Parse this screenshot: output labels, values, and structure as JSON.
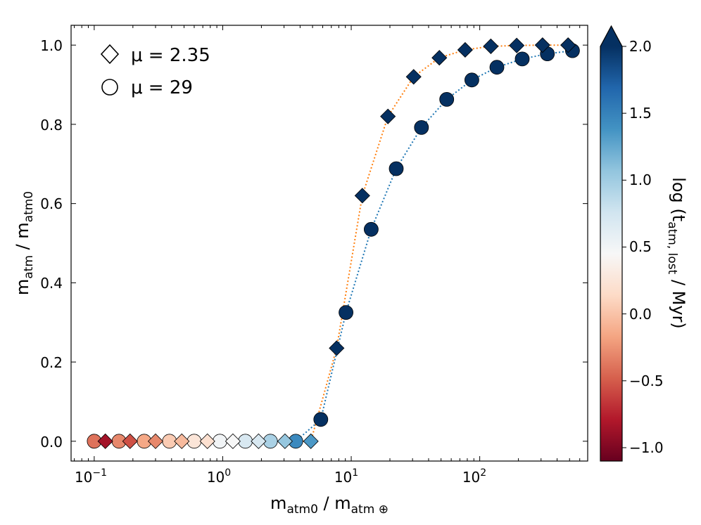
{
  "chart_data": {
    "type": "scatter",
    "xlabel": "m_atm0 / m_atm⊕",
    "xlabel_main": "m",
    "xlabel_sub": "atm0",
    "xlabel_sep": " / ",
    "xlabel_main2": "m",
    "xlabel_sub2": "atm ⊕",
    "ylabel": "m_atm / m_atm0",
    "ylabel_main": "m",
    "ylabel_sub": "atm",
    "ylabel_sep": " / ",
    "ylabel_main2": "m",
    "ylabel_sub2": "atm0",
    "xscale": "log",
    "xlim_log10": [
      -1.18,
      2.84
    ],
    "ylim": [
      -0.05,
      1.05
    ],
    "x_ticks": [
      {
        "base": "10",
        "exp": "−1",
        "value": 0.1
      },
      {
        "base": "10",
        "exp": "0",
        "value": 1
      },
      {
        "base": "10",
        "exp": "1",
        "value": 10
      },
      {
        "base": "10",
        "exp": "2",
        "value": 100
      }
    ],
    "y_ticks": [
      {
        "label": "0.0",
        "value": 0.0
      },
      {
        "label": "0.2",
        "value": 0.2
      },
      {
        "label": "0.4",
        "value": 0.4
      },
      {
        "label": "0.6",
        "value": 0.6
      },
      {
        "label": "0.8",
        "value": 0.8
      },
      {
        "label": "1.0",
        "value": 1.0
      }
    ],
    "legend": {
      "placement": "top-left",
      "entries": [
        {
          "marker": "diamond",
          "label": "μ = 2.35"
        },
        {
          "marker": "circle",
          "label": "μ = 29"
        }
      ]
    },
    "colorbar": {
      "label": "log (t_atm, lost / Myr)",
      "label_prefix": "log (t",
      "label_sub": "atm, lost",
      "label_suffix": " / Myr)",
      "range": [
        -1.1,
        2.0
      ],
      "extend": "max",
      "ticks": [
        {
          "label": "2.0",
          "value": 2.0
        },
        {
          "label": "1.5",
          "value": 1.5
        },
        {
          "label": "1.0",
          "value": 1.0
        },
        {
          "label": "0.5",
          "value": 0.5
        },
        {
          "label": "0.0",
          "value": 0.0
        },
        {
          "label": "−0.5",
          "value": -0.5
        },
        {
          "label": "−1.0",
          "value": -1.0
        }
      ],
      "colormap": "RdBu",
      "stops": [
        "#67001f",
        "#b2182b",
        "#d6604d",
        "#f4a582",
        "#fddbc7",
        "#f7f7f7",
        "#d1e5f0",
        "#92c5de",
        "#4393c3",
        "#2166ac",
        "#053061"
      ]
    },
    "series": [
      {
        "name": "μ = 2.35",
        "marker": "diamond",
        "line_color": "#ff7f0e",
        "x": [
          0.122,
          0.19,
          0.3,
          0.48,
          0.76,
          1.2,
          1.9,
          3.05,
          4.85,
          7.7,
          12.2,
          19.3,
          30.6,
          48.5,
          77,
          122,
          194,
          308,
          487
        ],
        "y": [
          0.0,
          0.0,
          0.0,
          0.0,
          0.0,
          0.0,
          0.0,
          0.0,
          0.0,
          0.235,
          0.62,
          0.82,
          0.92,
          0.968,
          0.988,
          0.997,
          0.999,
          1.0,
          1.0
        ],
        "log_t": [
          -0.85,
          -0.55,
          -0.3,
          -0.05,
          0.2,
          0.45,
          0.7,
          1.05,
          1.35,
          2.1,
          2.1,
          2.1,
          2.1,
          2.1,
          2.1,
          2.1,
          2.1,
          2.1,
          2.1
        ]
      },
      {
        "name": "μ = 29",
        "marker": "circle",
        "line_color": "#1f77b4",
        "x": [
          0.1,
          0.156,
          0.245,
          0.385,
          0.6,
          0.95,
          1.5,
          2.35,
          3.7,
          5.8,
          9.1,
          14.3,
          22.4,
          35.2,
          55.3,
          86.8,
          136,
          214,
          336,
          527
        ],
        "y": [
          0.0,
          0.0,
          0.0,
          0.0,
          0.0,
          0.0,
          0.0,
          0.0,
          0.0,
          0.055,
          0.325,
          0.535,
          0.688,
          0.792,
          0.863,
          0.912,
          0.944,
          0.965,
          0.978,
          0.986
        ],
        "log_t": [
          -0.4,
          -0.3,
          -0.15,
          0.05,
          0.25,
          0.5,
          0.7,
          0.95,
          1.45,
          2.1,
          2.1,
          2.1,
          2.1,
          2.1,
          2.1,
          2.1,
          2.1,
          2.1,
          2.1,
          2.1
        ]
      }
    ]
  }
}
